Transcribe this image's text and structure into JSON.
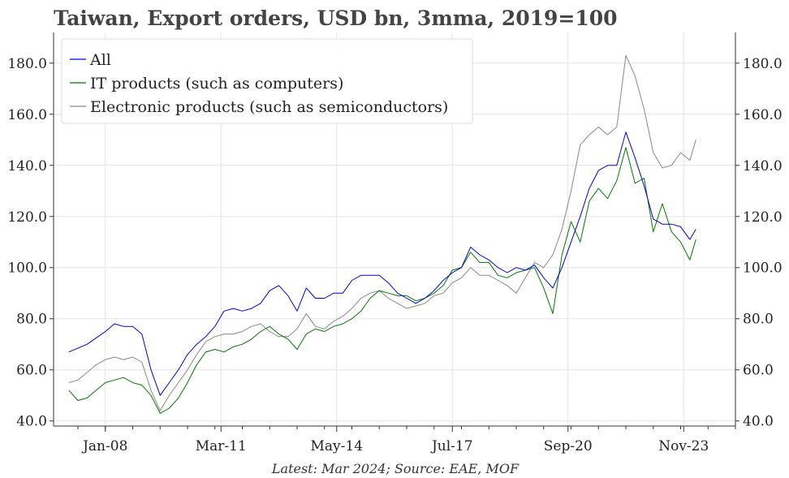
{
  "colors": {
    "all": "#0000dd",
    "it": "#007700",
    "elec": "#888888",
    "grid": "#e4e4e4",
    "axis": "#333333",
    "title": "#444444"
  },
  "chart_data": {
    "type": "line",
    "title": "Taiwan, Export orders, USD bn, 3mma, 2019=100",
    "source": "Latest: Mar 2024; Source: EAE, MOF",
    "xlabel": "",
    "ylabel": "",
    "xlim": [
      "2006-08",
      "2025-04"
    ],
    "ylim": [
      38,
      192
    ],
    "grid": true,
    "legend_position": "top-left",
    "y_ticks": [
      {
        "value": 40,
        "label": "40.0"
      },
      {
        "value": 60,
        "label": "60.0"
      },
      {
        "value": 80,
        "label": "80.0"
      },
      {
        "value": 100,
        "label": "100.0"
      },
      {
        "value": 120,
        "label": "120.0"
      },
      {
        "value": 140,
        "label": "140.0"
      },
      {
        "value": 160,
        "label": "160.0"
      },
      {
        "value": 180,
        "label": "180.0"
      }
    ],
    "x_ticks": [
      {
        "date": "2008-01",
        "label": "Jan-08"
      },
      {
        "date": "2011-03",
        "label": "Mar-11"
      },
      {
        "date": "2014-05",
        "label": "May-14"
      },
      {
        "date": "2017-07",
        "label": "Jul-17"
      },
      {
        "date": "2020-09",
        "label": "Sep-20"
      },
      {
        "date": "2023-11",
        "label": "Nov-23"
      }
    ],
    "series": [
      {
        "name": "All",
        "color": "#0000dd",
        "points": [
          [
            "2007-01",
            67
          ],
          [
            "2007-07",
            70
          ],
          [
            "2008-01",
            75
          ],
          [
            "2008-04",
            78
          ],
          [
            "2008-07",
            77
          ],
          [
            "2008-10",
            77
          ],
          [
            "2009-01",
            74
          ],
          [
            "2009-04",
            60
          ],
          [
            "2009-07",
            50
          ],
          [
            "2009-10",
            55
          ],
          [
            "2010-01",
            60
          ],
          [
            "2010-04",
            66
          ],
          [
            "2010-07",
            70
          ],
          [
            "2010-10",
            73
          ],
          [
            "2011-01",
            77
          ],
          [
            "2011-04",
            83
          ],
          [
            "2011-07",
            84
          ],
          [
            "2011-10",
            83
          ],
          [
            "2012-01",
            84
          ],
          [
            "2012-04",
            86
          ],
          [
            "2012-07",
            91
          ],
          [
            "2012-10",
            93
          ],
          [
            "2013-01",
            89
          ],
          [
            "2013-04",
            83
          ],
          [
            "2013-07",
            92
          ],
          [
            "2013-10",
            88
          ],
          [
            "2014-01",
            88
          ],
          [
            "2014-04",
            90
          ],
          [
            "2014-07",
            90
          ],
          [
            "2014-10",
            95
          ],
          [
            "2015-01",
            97
          ],
          [
            "2015-04",
            97
          ],
          [
            "2015-07",
            97
          ],
          [
            "2015-10",
            94
          ],
          [
            "2016-01",
            90
          ],
          [
            "2016-04",
            88
          ],
          [
            "2016-07",
            86
          ],
          [
            "2016-10",
            88
          ],
          [
            "2017-01",
            91
          ],
          [
            "2017-04",
            95
          ],
          [
            "2017-07",
            98
          ],
          [
            "2017-10",
            100
          ],
          [
            "2018-01",
            108
          ],
          [
            "2018-04",
            105
          ],
          [
            "2018-07",
            103
          ],
          [
            "2018-10",
            100
          ],
          [
            "2019-01",
            98
          ],
          [
            "2019-04",
            100
          ],
          [
            "2019-07",
            99
          ],
          [
            "2019-10",
            101
          ],
          [
            "2020-01",
            96
          ],
          [
            "2020-04",
            92
          ],
          [
            "2020-07",
            100
          ],
          [
            "2020-10",
            110
          ],
          [
            "2021-01",
            120
          ],
          [
            "2021-04",
            131
          ],
          [
            "2021-07",
            138
          ],
          [
            "2021-10",
            140
          ],
          [
            "2022-01",
            140
          ],
          [
            "2022-04",
            153
          ],
          [
            "2022-07",
            143
          ],
          [
            "2022-10",
            132
          ],
          [
            "2023-01",
            119
          ],
          [
            "2023-04",
            117
          ],
          [
            "2023-07",
            117
          ],
          [
            "2023-10",
            116
          ],
          [
            "2024-01",
            111
          ],
          [
            "2024-03",
            115
          ]
        ]
      },
      {
        "name": "IT products (such as computers)",
        "color": "#007700",
        "points": [
          [
            "2007-01",
            52
          ],
          [
            "2007-04",
            48
          ],
          [
            "2007-07",
            49
          ],
          [
            "2007-10",
            52
          ],
          [
            "2008-01",
            55
          ],
          [
            "2008-04",
            56
          ],
          [
            "2008-07",
            57
          ],
          [
            "2008-10",
            55
          ],
          [
            "2009-01",
            54
          ],
          [
            "2009-04",
            50
          ],
          [
            "2009-07",
            43
          ],
          [
            "2009-10",
            45
          ],
          [
            "2010-01",
            49
          ],
          [
            "2010-04",
            55
          ],
          [
            "2010-07",
            62
          ],
          [
            "2010-10",
            67
          ],
          [
            "2011-01",
            68
          ],
          [
            "2011-04",
            67
          ],
          [
            "2011-07",
            69
          ],
          [
            "2011-10",
            70
          ],
          [
            "2012-01",
            72
          ],
          [
            "2012-04",
            75
          ],
          [
            "2012-07",
            77
          ],
          [
            "2012-10",
            74
          ],
          [
            "2013-01",
            72
          ],
          [
            "2013-04",
            68
          ],
          [
            "2013-07",
            74
          ],
          [
            "2013-10",
            76
          ],
          [
            "2014-01",
            75
          ],
          [
            "2014-04",
            77
          ],
          [
            "2014-07",
            78
          ],
          [
            "2014-10",
            80
          ],
          [
            "2015-01",
            83
          ],
          [
            "2015-04",
            88
          ],
          [
            "2015-07",
            91
          ],
          [
            "2015-10",
            90
          ],
          [
            "2016-01",
            89
          ],
          [
            "2016-04",
            89
          ],
          [
            "2016-07",
            87
          ],
          [
            "2016-10",
            88
          ],
          [
            "2017-01",
            90
          ],
          [
            "2017-04",
            93
          ],
          [
            "2017-07",
            99
          ],
          [
            "2017-10",
            100
          ],
          [
            "2018-01",
            106
          ],
          [
            "2018-04",
            102
          ],
          [
            "2018-07",
            102
          ],
          [
            "2018-10",
            97
          ],
          [
            "2019-01",
            96
          ],
          [
            "2019-04",
            98
          ],
          [
            "2019-07",
            99
          ],
          [
            "2019-10",
            100
          ],
          [
            "2020-01",
            92
          ],
          [
            "2020-04",
            82
          ],
          [
            "2020-07",
            105
          ],
          [
            "2020-10",
            118
          ],
          [
            "2021-01",
            110
          ],
          [
            "2021-04",
            126
          ],
          [
            "2021-07",
            131
          ],
          [
            "2021-10",
            127
          ],
          [
            "2022-01",
            134
          ],
          [
            "2022-04",
            147
          ],
          [
            "2022-07",
            133
          ],
          [
            "2022-10",
            135
          ],
          [
            "2023-01",
            114
          ],
          [
            "2023-04",
            125
          ],
          [
            "2023-07",
            114
          ],
          [
            "2023-10",
            110
          ],
          [
            "2024-01",
            103
          ],
          [
            "2024-03",
            111
          ]
        ]
      },
      {
        "name": "Electronic products (such as semiconductors)",
        "color": "#888888",
        "points": [
          [
            "2007-01",
            55
          ],
          [
            "2007-04",
            56
          ],
          [
            "2007-07",
            59
          ],
          [
            "2007-10",
            62
          ],
          [
            "2008-01",
            64
          ],
          [
            "2008-04",
            65
          ],
          [
            "2008-07",
            64
          ],
          [
            "2008-10",
            65
          ],
          [
            "2009-01",
            63
          ],
          [
            "2009-04",
            52
          ],
          [
            "2009-07",
            44
          ],
          [
            "2009-10",
            50
          ],
          [
            "2010-01",
            55
          ],
          [
            "2010-04",
            60
          ],
          [
            "2010-07",
            66
          ],
          [
            "2010-10",
            71
          ],
          [
            "2011-01",
            73
          ],
          [
            "2011-04",
            74
          ],
          [
            "2011-07",
            74
          ],
          [
            "2011-10",
            75
          ],
          [
            "2012-01",
            77
          ],
          [
            "2012-04",
            78
          ],
          [
            "2012-07",
            75
          ],
          [
            "2012-10",
            73
          ],
          [
            "2013-01",
            73
          ],
          [
            "2013-04",
            76
          ],
          [
            "2013-07",
            82
          ],
          [
            "2013-10",
            77
          ],
          [
            "2014-01",
            76
          ],
          [
            "2014-04",
            79
          ],
          [
            "2014-07",
            81
          ],
          [
            "2014-10",
            84
          ],
          [
            "2015-01",
            88
          ],
          [
            "2015-04",
            90
          ],
          [
            "2015-07",
            91
          ],
          [
            "2015-10",
            88
          ],
          [
            "2016-01",
            86
          ],
          [
            "2016-04",
            84
          ],
          [
            "2016-07",
            85
          ],
          [
            "2016-10",
            86
          ],
          [
            "2017-01",
            89
          ],
          [
            "2017-04",
            90
          ],
          [
            "2017-07",
            94
          ],
          [
            "2017-10",
            96
          ],
          [
            "2018-01",
            100
          ],
          [
            "2018-04",
            97
          ],
          [
            "2018-07",
            97
          ],
          [
            "2018-10",
            95
          ],
          [
            "2019-01",
            93
          ],
          [
            "2019-04",
            90
          ],
          [
            "2019-07",
            96
          ],
          [
            "2019-10",
            102
          ],
          [
            "2020-01",
            100
          ],
          [
            "2020-04",
            105
          ],
          [
            "2020-07",
            115
          ],
          [
            "2020-10",
            130
          ],
          [
            "2021-01",
            148
          ],
          [
            "2021-04",
            152
          ],
          [
            "2021-07",
            155
          ],
          [
            "2021-10",
            152
          ],
          [
            "2022-01",
            155
          ],
          [
            "2022-04",
            183
          ],
          [
            "2022-07",
            175
          ],
          [
            "2022-10",
            162
          ],
          [
            "2023-01",
            145
          ],
          [
            "2023-04",
            139
          ],
          [
            "2023-07",
            140
          ],
          [
            "2023-10",
            145
          ],
          [
            "2024-01",
            142
          ],
          [
            "2024-03",
            150
          ]
        ]
      }
    ]
  }
}
